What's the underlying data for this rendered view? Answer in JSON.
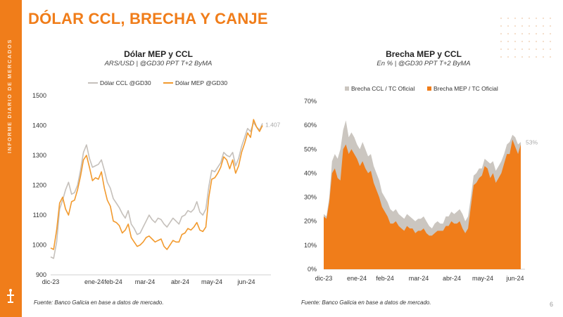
{
  "report": {
    "sidebar_label": "INFORME DIARIO DE MERCADOS",
    "title": "DÓLAR CCL, BRECHA Y CANJE",
    "page_number": "6",
    "colors": {
      "brand": "#f07d1a",
      "grey": "#cbc6c0",
      "ccl_line": "#c5c0bb",
      "mep_line": "#f29a2e"
    }
  },
  "chart_data": [
    {
      "type": "line",
      "title": "Dólar MEP y CCL",
      "subtitle": "ARS/USD | @GD30 PPT T+2 ByMA",
      "source": "Fuente: Banco Galicia en base a datos de mercado.",
      "ylim": [
        900,
        1500
      ],
      "yticks": [
        "900",
        "1000",
        "1100",
        "1200",
        "1300",
        "1400",
        "1500"
      ],
      "x_labels": [
        "dic-23",
        "ene-24",
        "feb-24",
        "mar-24",
        "abr-24",
        "may-24",
        "jun-24"
      ],
      "last_value_label": "1.407",
      "series": [
        {
          "name": "Dólar CCL @GD30",
          "values": [
            960,
            955,
            1010,
            1120,
            1150,
            1185,
            1210,
            1170,
            1175,
            1200,
            1250,
            1310,
            1335,
            1290,
            1260,
            1265,
            1270,
            1285,
            1250,
            1210,
            1190,
            1155,
            1140,
            1125,
            1105,
            1090,
            1115,
            1070,
            1055,
            1035,
            1040,
            1060,
            1080,
            1100,
            1085,
            1075,
            1090,
            1085,
            1070,
            1060,
            1075,
            1090,
            1080,
            1070,
            1095,
            1100,
            1115,
            1110,
            1120,
            1145,
            1110,
            1100,
            1120,
            1195,
            1250,
            1245,
            1260,
            1275,
            1310,
            1300,
            1295,
            1310,
            1265,
            1290,
            1330,
            1360,
            1390,
            1380,
            1410,
            1395,
            1385,
            1407
          ]
        },
        {
          "name": "Dólar MEP @GD30",
          "values": [
            990,
            985,
            1050,
            1140,
            1160,
            1120,
            1100,
            1145,
            1150,
            1185,
            1230,
            1285,
            1300,
            1260,
            1215,
            1225,
            1220,
            1245,
            1190,
            1150,
            1130,
            1080,
            1075,
            1065,
            1040,
            1050,
            1070,
            1025,
            1010,
            995,
            1000,
            1010,
            1025,
            1030,
            1020,
            1010,
            1015,
            1020,
            995,
            985,
            1000,
            1015,
            1010,
            1010,
            1035,
            1040,
            1055,
            1050,
            1060,
            1075,
            1050,
            1045,
            1060,
            1160,
            1220,
            1225,
            1240,
            1260,
            1295,
            1285,
            1255,
            1285,
            1240,
            1265,
            1310,
            1340,
            1375,
            1360,
            1420,
            1395,
            1380,
            1400
          ]
        }
      ]
    },
    {
      "type": "area",
      "title": "Brecha MEP y CCL",
      "subtitle": "En % | @GD30 PPT T+2 ByMA",
      "source": "Fuente: Banco Galicia en base a datos de mercado.",
      "ylim": [
        0,
        70
      ],
      "yticks": [
        "0%",
        "10%",
        "20%",
        "30%",
        "40%",
        "50%",
        "60%",
        "70%"
      ],
      "x_labels": [
        "dic-23",
        "ene-24",
        "feb-24",
        "mar-24",
        "abr-24",
        "may-24",
        "jun-24"
      ],
      "last_value_label": "53%",
      "series": [
        {
          "name": "Brecha CCL / TC Oficial",
          "values": [
            23,
            22,
            30,
            45,
            48,
            46,
            50,
            58,
            62,
            55,
            57,
            55,
            52,
            50,
            53,
            50,
            47,
            48,
            43,
            40,
            37,
            32,
            30,
            28,
            25,
            24,
            25,
            23,
            22,
            21,
            23,
            22,
            21,
            20,
            21,
            21,
            22,
            20,
            18,
            17,
            19,
            20,
            19,
            19,
            22,
            22,
            24,
            23,
            24,
            25,
            23,
            20,
            22,
            30,
            39,
            40,
            42,
            42,
            46,
            45,
            44,
            45,
            41,
            43,
            45,
            48,
            52,
            53,
            56,
            55,
            52,
            53
          ]
        },
        {
          "name": "Brecha MEP / TC Oficial",
          "values": [
            22,
            21,
            28,
            40,
            42,
            38,
            37,
            50,
            52,
            48,
            50,
            48,
            46,
            43,
            45,
            42,
            40,
            41,
            36,
            33,
            30,
            26,
            24,
            22,
            19,
            19,
            20,
            18,
            17,
            16,
            18,
            17,
            17,
            15,
            16,
            16,
            17,
            15,
            14,
            14,
            15,
            16,
            16,
            16,
            18,
            18,
            20,
            19,
            19,
            20,
            17,
            15,
            17,
            26,
            35,
            36,
            38,
            39,
            43,
            42,
            38,
            40,
            36,
            38,
            40,
            44,
            48,
            48,
            54,
            51,
            48,
            52
          ]
        }
      ]
    }
  ]
}
